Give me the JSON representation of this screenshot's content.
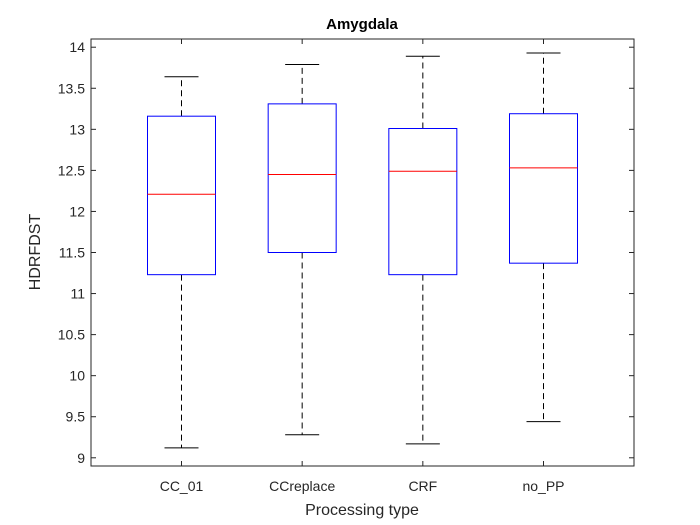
{
  "chart_data": {
    "type": "boxplot",
    "title": "Amygdala",
    "xlabel": "Processing type",
    "ylabel": "HDRFDST",
    "ylim": [
      8.9,
      14.1
    ],
    "yticks": [
      9,
      9.5,
      10,
      10.5,
      11,
      11.5,
      12,
      12.5,
      13,
      13.5,
      14
    ],
    "ytick_labels": [
      "9",
      "9.5",
      "10",
      "10.5",
      "11",
      "11.5",
      "12",
      "12.5",
      "13",
      "13.5",
      "14"
    ],
    "categories": [
      "CC_01",
      "CCreplace",
      "CRF",
      "no_PP"
    ],
    "boxes": [
      {
        "min": 9.12,
        "q1": 11.23,
        "median": 12.21,
        "q3": 13.16,
        "max": 13.64
      },
      {
        "min": 9.28,
        "q1": 11.5,
        "median": 12.45,
        "q3": 13.31,
        "max": 13.79
      },
      {
        "min": 9.17,
        "q1": 11.23,
        "median": 12.49,
        "q3": 13.01,
        "max": 13.89
      },
      {
        "min": 9.44,
        "q1": 11.37,
        "median": 12.53,
        "q3": 13.19,
        "max": 13.93
      }
    ],
    "grid": false,
    "colors": {
      "box": "#0000ff",
      "median": "#ff0000",
      "whisker": "#000000",
      "axis": "#262626"
    }
  }
}
